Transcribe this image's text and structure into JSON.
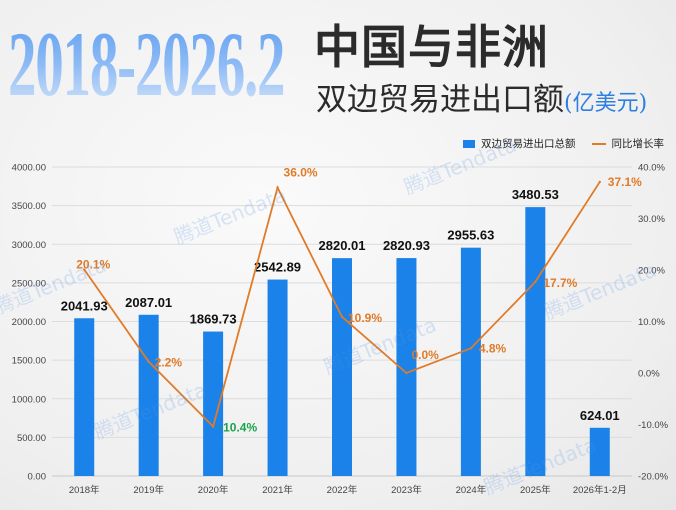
{
  "title": {
    "years": "2018-2026.2",
    "line1": "中国与非洲",
    "line2": "双边贸易进出口额",
    "unit": "(亿美元)"
  },
  "watermark": "腾道Tendata",
  "colors": {
    "bar": "#1a82e8",
    "line": "#e07b28",
    "negative_label": "#1aa34a",
    "label": "#111111"
  },
  "chart_data": {
    "type": "bar+line",
    "categories": [
      "2018年",
      "2019年",
      "2020年",
      "2021年",
      "2022年",
      "2023年",
      "2024年",
      "2025年",
      "2026年1-2月"
    ],
    "series": [
      {
        "name": "双边贸易进出口总额",
        "type": "bar",
        "axis": "left",
        "values": [
          2041.93,
          2087.01,
          1869.73,
          2542.89,
          2820.01,
          2820.93,
          2955.63,
          3480.53,
          624.01
        ],
        "labels": [
          "2041.93",
          "2087.01",
          "1869.73",
          "2542.89",
          "2820.01",
          "2820.93",
          "2955.63",
          "3480.53",
          "624.01"
        ]
      },
      {
        "name": "同比增长率",
        "type": "line",
        "axis": "right",
        "values": [
          20.1,
          2.2,
          -10.4,
          36.0,
          10.9,
          0.0,
          4.8,
          17.7,
          37.1
        ],
        "labels": [
          "20.1%",
          "2.2%",
          "-10.4%",
          "36.0%",
          "10.9%",
          "0.0%",
          "4.8%",
          "17.7%",
          "37.1%"
        ]
      }
    ],
    "left_axis": {
      "range": [
        0,
        4000
      ],
      "ticks": [
        "0.00",
        "500.00",
        "1000.00",
        "1500.00",
        "2000.00",
        "2500.00",
        "3000.00",
        "3500.00",
        "4000.00"
      ]
    },
    "right_axis": {
      "range": [
        -20,
        40
      ],
      "ticks": [
        "-20.0%",
        "-10.0%",
        "0.0%",
        "10.0%",
        "20.0%",
        "30.0%",
        "40.0%"
      ]
    },
    "grid": true,
    "legend_position": "top-right"
  }
}
